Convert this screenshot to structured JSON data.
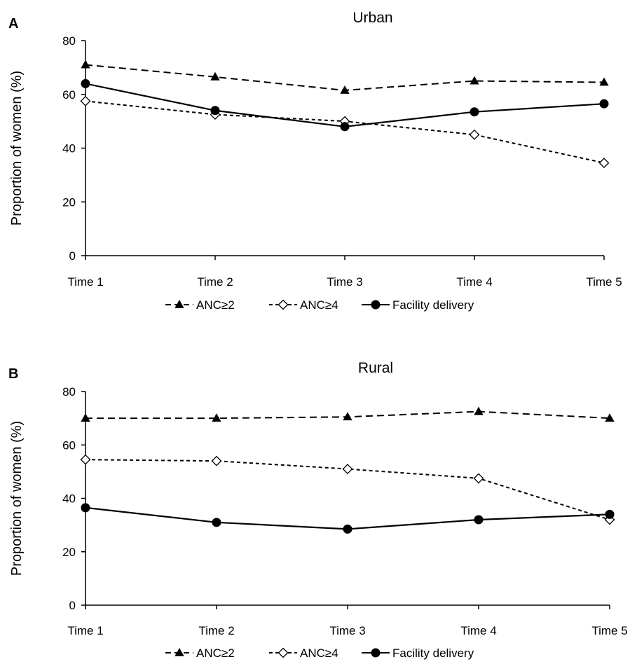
{
  "chart_data": [
    {
      "type": "line",
      "panel_label": "A",
      "title": "Urban",
      "xlabel": "",
      "ylabel": "Proportion of women (%)",
      "categories": [
        "Time 1",
        "Time 2",
        "Time 3",
        "Time 4",
        "Time 5"
      ],
      "ylim": [
        0,
        80
      ],
      "yticks": [
        "0",
        "20",
        "40",
        "60",
        "80"
      ],
      "grid": false,
      "legend_position": "bottom",
      "series": [
        {
          "name": "ANC≥2",
          "style": "long-dash",
          "marker": "filled-triangle",
          "values": [
            71,
            66.5,
            61.5,
            65,
            64.5
          ]
        },
        {
          "name": "ANC≥4",
          "style": "short-dash",
          "marker": "open-diamond",
          "values": [
            57.5,
            52.5,
            50,
            45,
            34.5
          ]
        },
        {
          "name": "Facility delivery",
          "style": "solid",
          "marker": "filled-circle",
          "values": [
            64,
            54,
            48,
            53.5,
            56.5
          ]
        }
      ]
    },
    {
      "type": "line",
      "panel_label": "B",
      "title": "Rural",
      "xlabel": "",
      "ylabel": "Proportion of women (%)",
      "categories": [
        "Time 1",
        "Time 2",
        "Time 3",
        "Time 4",
        "Time 5"
      ],
      "ylim": [
        0,
        80
      ],
      "yticks": [
        "0",
        "20",
        "40",
        "60",
        "80"
      ],
      "grid": false,
      "legend_position": "bottom",
      "series": [
        {
          "name": "ANC≥2",
          "style": "long-dash",
          "marker": "filled-triangle",
          "values": [
            70,
            70,
            70.5,
            72.5,
            70
          ]
        },
        {
          "name": "ANC≥4",
          "style": "short-dash",
          "marker": "open-diamond",
          "values": [
            54.5,
            54,
            51,
            47.5,
            32
          ]
        },
        {
          "name": "Facility delivery",
          "style": "solid",
          "marker": "filled-circle",
          "values": [
            36.5,
            31,
            28.5,
            32,
            34
          ]
        }
      ]
    }
  ]
}
